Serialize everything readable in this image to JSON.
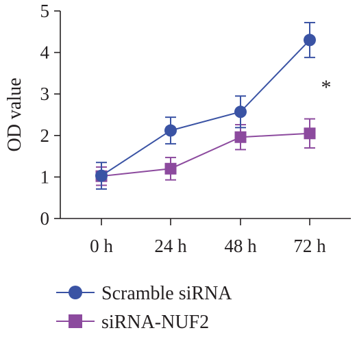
{
  "chart_data": {
    "type": "line",
    "title": "",
    "xlabel": "",
    "ylabel": "OD value",
    "categories": [
      "0 h",
      "24 h",
      "48 h",
      "72 h"
    ],
    "ylim": [
      0,
      5
    ],
    "yticks": [
      "0",
      "1",
      "2",
      "3",
      "4",
      "5"
    ],
    "grid": false,
    "legend_position": "bottom-left",
    "series": [
      {
        "name": "Scramble siRNA",
        "marker": "circle",
        "color": "#3a53a4",
        "values": [
          1.03,
          2.12,
          2.57,
          4.3
        ],
        "error": [
          0.32,
          0.32,
          0.38,
          0.42
        ]
      },
      {
        "name": "siRNA-NUF2",
        "marker": "square",
        "color": "#8c4a9e",
        "values": [
          1.02,
          1.2,
          1.96,
          2.05
        ],
        "error": [
          0.22,
          0.27,
          0.3,
          0.35
        ]
      }
    ],
    "annotations": [
      {
        "text": "*",
        "category": "72 h"
      }
    ]
  }
}
